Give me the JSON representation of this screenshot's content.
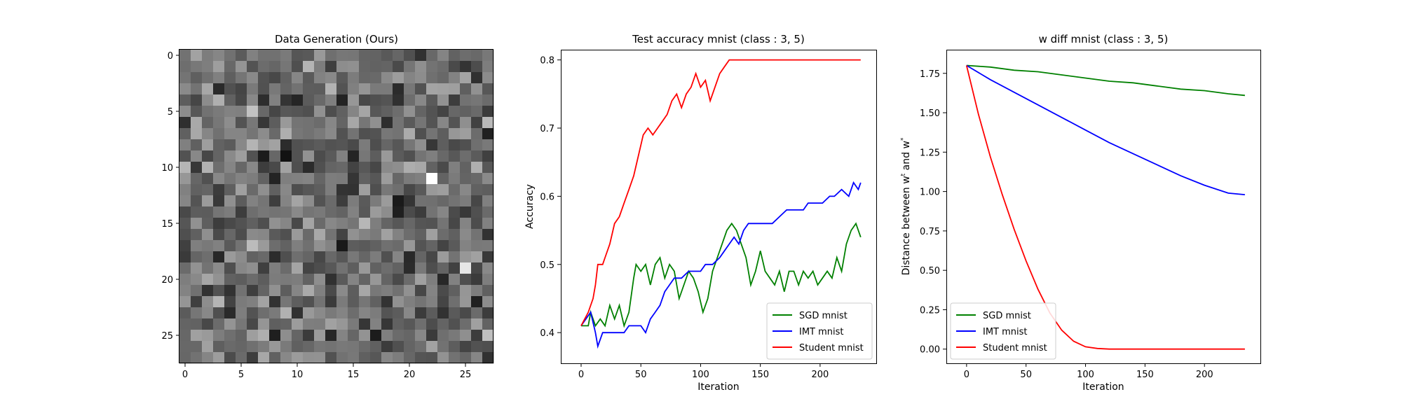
{
  "chart_data": [
    {
      "type": "heatmap",
      "title": "Data Generation (Ours)",
      "rows": 28,
      "cols": 28,
      "colormap": "gray",
      "xticks": [
        0,
        5,
        10,
        15,
        20,
        25
      ],
      "yticks": [
        0,
        5,
        10,
        15,
        20,
        25
      ],
      "bright_pixels": [
        {
          "row": 11,
          "col": 22,
          "value": 1.0
        },
        {
          "row": 19,
          "col": 25,
          "value": 0.9
        }
      ]
    },
    {
      "type": "line",
      "title": "Test accuracy mnist (class : 3, 5)",
      "xlabel": "Iteration",
      "ylabel": "Accuracy",
      "xlim": [
        -17,
        247
      ],
      "ylim": [
        0.355,
        0.815
      ],
      "xticks": [
        0,
        50,
        100,
        150,
        200
      ],
      "yticks": [
        0.4,
        0.5,
        0.6,
        0.7,
        0.8
      ],
      "ytick_labels": [
        "0.4",
        "0.5",
        "0.6",
        "0.7",
        "0.8"
      ],
      "legend_loc": "lower right",
      "series": [
        {
          "name": "SGD mnist",
          "color": "#008000",
          "points": [
            [
              0,
              0.41
            ],
            [
              6,
              0.41
            ],
            [
              8,
              0.43
            ],
            [
              10,
              0.42
            ],
            [
              12,
              0.41
            ],
            [
              16,
              0.42
            ],
            [
              20,
              0.41
            ],
            [
              24,
              0.44
            ],
            [
              28,
              0.42
            ],
            [
              32,
              0.44
            ],
            [
              36,
              0.41
            ],
            [
              40,
              0.43
            ],
            [
              44,
              0.48
            ],
            [
              46,
              0.5
            ],
            [
              50,
              0.49
            ],
            [
              54,
              0.5
            ],
            [
              58,
              0.47
            ],
            [
              62,
              0.5
            ],
            [
              66,
              0.51
            ],
            [
              70,
              0.48
            ],
            [
              74,
              0.5
            ],
            [
              78,
              0.49
            ],
            [
              82,
              0.45
            ],
            [
              86,
              0.47
            ],
            [
              90,
              0.49
            ],
            [
              94,
              0.48
            ],
            [
              98,
              0.46
            ],
            [
              102,
              0.43
            ],
            [
              106,
              0.45
            ],
            [
              110,
              0.49
            ],
            [
              114,
              0.51
            ],
            [
              118,
              0.53
            ],
            [
              122,
              0.55
            ],
            [
              126,
              0.56
            ],
            [
              130,
              0.55
            ],
            [
              134,
              0.53
            ],
            [
              138,
              0.51
            ],
            [
              142,
              0.47
            ],
            [
              146,
              0.49
            ],
            [
              150,
              0.52
            ],
            [
              154,
              0.49
            ],
            [
              158,
              0.48
            ],
            [
              162,
              0.47
            ],
            [
              166,
              0.49
            ],
            [
              170,
              0.46
            ],
            [
              174,
              0.49
            ],
            [
              178,
              0.49
            ],
            [
              182,
              0.47
            ],
            [
              186,
              0.49
            ],
            [
              190,
              0.48
            ],
            [
              194,
              0.49
            ],
            [
              198,
              0.47
            ],
            [
              202,
              0.48
            ],
            [
              206,
              0.49
            ],
            [
              210,
              0.48
            ],
            [
              214,
              0.51
            ],
            [
              218,
              0.49
            ],
            [
              222,
              0.53
            ],
            [
              226,
              0.55
            ],
            [
              230,
              0.56
            ],
            [
              234,
              0.54
            ]
          ]
        },
        {
          "name": "IMT mnist",
          "color": "#0000ff",
          "points": [
            [
              0,
              0.41
            ],
            [
              4,
              0.42
            ],
            [
              8,
              0.43
            ],
            [
              12,
              0.4
            ],
            [
              14,
              0.38
            ],
            [
              18,
              0.4
            ],
            [
              24,
              0.4
            ],
            [
              30,
              0.4
            ],
            [
              36,
              0.4
            ],
            [
              40,
              0.41
            ],
            [
              44,
              0.41
            ],
            [
              50,
              0.41
            ],
            [
              54,
              0.4
            ],
            [
              58,
              0.42
            ],
            [
              62,
              0.43
            ],
            [
              66,
              0.44
            ],
            [
              70,
              0.46
            ],
            [
              74,
              0.47
            ],
            [
              78,
              0.48
            ],
            [
              84,
              0.48
            ],
            [
              90,
              0.49
            ],
            [
              96,
              0.49
            ],
            [
              100,
              0.49
            ],
            [
              104,
              0.5
            ],
            [
              110,
              0.5
            ],
            [
              116,
              0.51
            ],
            [
              120,
              0.52
            ],
            [
              124,
              0.53
            ],
            [
              128,
              0.54
            ],
            [
              132,
              0.53
            ],
            [
              136,
              0.55
            ],
            [
              140,
              0.56
            ],
            [
              148,
              0.56
            ],
            [
              154,
              0.56
            ],
            [
              160,
              0.56
            ],
            [
              166,
              0.57
            ],
            [
              172,
              0.58
            ],
            [
              180,
              0.58
            ],
            [
              186,
              0.58
            ],
            [
              190,
              0.59
            ],
            [
              196,
              0.59
            ],
            [
              202,
              0.59
            ],
            [
              208,
              0.6
            ],
            [
              212,
              0.6
            ],
            [
              218,
              0.61
            ],
            [
              224,
              0.6
            ],
            [
              228,
              0.62
            ],
            [
              232,
              0.61
            ],
            [
              234,
              0.62
            ]
          ]
        },
        {
          "name": "Student mnist",
          "color": "#ff0000",
          "points": [
            [
              0,
              0.41
            ],
            [
              6,
              0.43
            ],
            [
              10,
              0.45
            ],
            [
              12,
              0.47
            ],
            [
              14,
              0.5
            ],
            [
              18,
              0.5
            ],
            [
              20,
              0.51
            ],
            [
              24,
              0.53
            ],
            [
              28,
              0.56
            ],
            [
              32,
              0.57
            ],
            [
              36,
              0.59
            ],
            [
              40,
              0.61
            ],
            [
              44,
              0.63
            ],
            [
              48,
              0.66
            ],
            [
              52,
              0.69
            ],
            [
              56,
              0.7
            ],
            [
              60,
              0.69
            ],
            [
              64,
              0.7
            ],
            [
              68,
              0.71
            ],
            [
              72,
              0.72
            ],
            [
              76,
              0.74
            ],
            [
              80,
              0.75
            ],
            [
              84,
              0.73
            ],
            [
              88,
              0.75
            ],
            [
              92,
              0.76
            ],
            [
              96,
              0.78
            ],
            [
              100,
              0.76
            ],
            [
              104,
              0.77
            ],
            [
              108,
              0.74
            ],
            [
              112,
              0.76
            ],
            [
              116,
              0.78
            ],
            [
              120,
              0.79
            ],
            [
              124,
              0.8
            ],
            [
              128,
              0.8
            ],
            [
              140,
              0.8
            ],
            [
              160,
              0.8
            ],
            [
              180,
              0.8
            ],
            [
              200,
              0.8
            ],
            [
              220,
              0.8
            ],
            [
              234,
              0.8
            ]
          ]
        }
      ]
    },
    {
      "type": "line",
      "title": "w diff mnist (class : 3, 5)",
      "xlabel": "Iteration",
      "ylabel_prefix": "Distance between w",
      "ylabel_sup1": "t",
      "ylabel_mid": " and w",
      "ylabel_sup2": "*",
      "xlim": [
        -17,
        247
      ],
      "ylim": [
        -0.09,
        1.9
      ],
      "xticks": [
        0,
        50,
        100,
        150,
        200
      ],
      "yticks": [
        0.0,
        0.25,
        0.5,
        0.75,
        1.0,
        1.25,
        1.5,
        1.75
      ],
      "ytick_labels": [
        "0.00",
        "0.25",
        "0.50",
        "0.75",
        "1.00",
        "1.25",
        "1.50",
        "1.75"
      ],
      "legend_loc": "lower left",
      "series": [
        {
          "name": "SGD mnist",
          "color": "#008000",
          "points": [
            [
              0,
              1.8
            ],
            [
              20,
              1.79
            ],
            [
              40,
              1.77
            ],
            [
              60,
              1.76
            ],
            [
              80,
              1.74
            ],
            [
              100,
              1.72
            ],
            [
              120,
              1.7
            ],
            [
              140,
              1.69
            ],
            [
              160,
              1.67
            ],
            [
              180,
              1.65
            ],
            [
              200,
              1.64
            ],
            [
              220,
              1.62
            ],
            [
              234,
              1.61
            ]
          ]
        },
        {
          "name": "IMT mnist",
          "color": "#0000ff",
          "points": [
            [
              0,
              1.8
            ],
            [
              20,
              1.71
            ],
            [
              40,
              1.63
            ],
            [
              60,
              1.55
            ],
            [
              80,
              1.47
            ],
            [
              100,
              1.39
            ],
            [
              120,
              1.31
            ],
            [
              140,
              1.24
            ],
            [
              160,
              1.17
            ],
            [
              180,
              1.1
            ],
            [
              200,
              1.04
            ],
            [
              220,
              0.99
            ],
            [
              234,
              0.98
            ]
          ]
        },
        {
          "name": "Student mnist",
          "color": "#ff0000",
          "points": [
            [
              0,
              1.8
            ],
            [
              10,
              1.49
            ],
            [
              20,
              1.22
            ],
            [
              30,
              0.98
            ],
            [
              40,
              0.76
            ],
            [
              50,
              0.56
            ],
            [
              60,
              0.38
            ],
            [
              70,
              0.23
            ],
            [
              80,
              0.12
            ],
            [
              90,
              0.05
            ],
            [
              100,
              0.015
            ],
            [
              110,
              0.004
            ],
            [
              120,
              0.0
            ],
            [
              150,
              0.0
            ],
            [
              200,
              0.0
            ],
            [
              234,
              0.0
            ]
          ]
        }
      ]
    }
  ]
}
